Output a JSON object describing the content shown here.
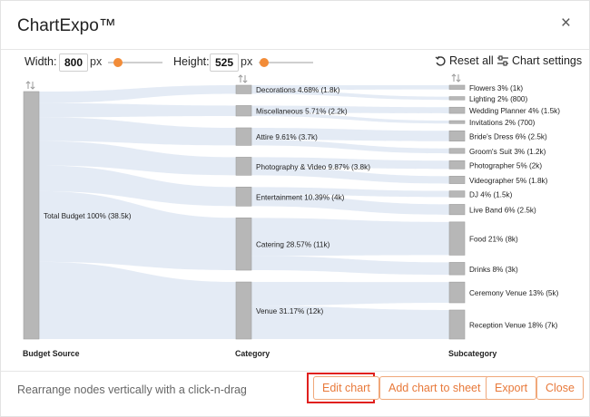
{
  "dialog": {
    "title": "ChartExpo™",
    "close_label": "×"
  },
  "controls": {
    "width_label": "Width:",
    "width_value": "800",
    "width_unit": "px",
    "height_label": "Height:",
    "height_value": "525",
    "height_unit": "px",
    "reset_label": "Reset all",
    "settings_label": "Chart settings"
  },
  "icons": {
    "reset": "reset-icon",
    "settings": "sliders-icon",
    "sort": "sort-arrows-icon",
    "close": "close-icon"
  },
  "colors": {
    "accent": "#f28c38",
    "node": "#b7b7b7",
    "link": "#dfe7f3",
    "highlight": "#e0201e"
  },
  "chart_data": {
    "type": "sankey",
    "columns": [
      "Budget Source",
      "Category",
      "Subcategory"
    ],
    "source": {
      "name": "Total Budget",
      "label": "Total Budget 100% (38.5k)",
      "value": 38.5
    },
    "categories": [
      {
        "name": "Decorations",
        "label": "Decorations 4.68% (1.8k)",
        "value": 1.8
      },
      {
        "name": "Miscellaneous",
        "label": "Miscellaneous 5.71% (2.2k)",
        "value": 2.2
      },
      {
        "name": "Attire",
        "label": "Attire 9.61% (3.7k)",
        "value": 3.7
      },
      {
        "name": "Photography & Video",
        "label": "Photography & Video 9.87% (3.8k)",
        "value": 3.8
      },
      {
        "name": "Entertainment",
        "label": "Entertainment 10.39% (4k)",
        "value": 4.0
      },
      {
        "name": "Catering",
        "label": "Catering 28.57% (11k)",
        "value": 11.0
      },
      {
        "name": "Venue",
        "label": "Venue 31.17% (12k)",
        "value": 12.0
      }
    ],
    "subcategories": [
      {
        "name": "Flowers",
        "parent": "Decorations",
        "label": "Flowers 3% (1k)",
        "value": 1.0
      },
      {
        "name": "Lighting",
        "parent": "Decorations",
        "label": "Lighting 2% (800)",
        "value": 0.8
      },
      {
        "name": "Wedding Planner",
        "parent": "Miscellaneous",
        "label": "Wedding Planner 4% (1.5k)",
        "value": 1.5
      },
      {
        "name": "Invitations",
        "parent": "Miscellaneous",
        "label": "Invitations 2% (700)",
        "value": 0.7
      },
      {
        "name": "Bride's Dress",
        "parent": "Attire",
        "label": "Bride's Dress 6% (2.5k)",
        "value": 2.5
      },
      {
        "name": "Groom's Suit",
        "parent": "Attire",
        "label": "Groom's Suit 3% (1.2k)",
        "value": 1.2
      },
      {
        "name": "Photographer",
        "parent": "Photography & Video",
        "label": "Photographer 5% (2k)",
        "value": 2.0
      },
      {
        "name": "Videographer",
        "parent": "Photography & Video",
        "label": "Videographer 5% (1.8k)",
        "value": 1.8
      },
      {
        "name": "DJ",
        "parent": "Entertainment",
        "label": "DJ 4% (1.5k)",
        "value": 1.5
      },
      {
        "name": "Live Band",
        "parent": "Entertainment",
        "label": "Live Band 6% (2.5k)",
        "value": 2.5
      },
      {
        "name": "Food",
        "parent": "Catering",
        "label": "Food 21% (8k)",
        "value": 8.0
      },
      {
        "name": "Drinks",
        "parent": "Catering",
        "label": "Drinks 8% (3k)",
        "value": 3.0
      },
      {
        "name": "Ceremony Venue",
        "parent": "Venue",
        "label": "Ceremony Venue 13% (5k)",
        "value": 5.0
      },
      {
        "name": "Reception Venue",
        "parent": "Venue",
        "label": "Reception Venue 18% (7k)",
        "value": 7.0
      }
    ]
  },
  "footer": {
    "hint": "Rearrange nodes vertically with a click-n-drag",
    "edit_label": "Edit chart",
    "add_label": "Add chart to sheet",
    "export_label": "Export",
    "close_label": "Close"
  }
}
